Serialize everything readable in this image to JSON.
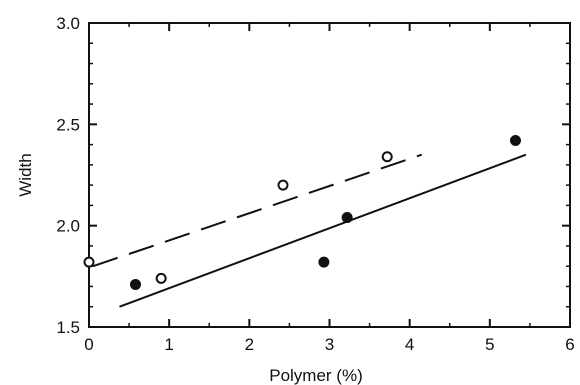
{
  "chart_data": {
    "type": "scatter",
    "xlabel": "Polymer (%)",
    "ylabel": "Width",
    "xlim": [
      0,
      6
    ],
    "ylim": [
      1.5,
      3.0
    ],
    "grid": false,
    "x_ticks": [
      "0",
      "1",
      "2",
      "3",
      "4",
      "5",
      "6"
    ],
    "y_ticks": [
      "1.5",
      "2.0",
      "2.5",
      "3.0"
    ],
    "series": [
      {
        "marker": "open-circle",
        "points": [
          {
            "x": 0.0,
            "y": 1.82
          },
          {
            "x": 0.9,
            "y": 1.74
          },
          {
            "x": 2.42,
            "y": 2.2
          },
          {
            "x": 3.72,
            "y": 2.34
          }
        ],
        "fit_line": {
          "style": "dashed",
          "x": [
            0.05,
            4.15
          ],
          "y": [
            1.8,
            2.35
          ]
        }
      },
      {
        "marker": "filled-circle",
        "points": [
          {
            "x": 0.58,
            "y": 1.71
          },
          {
            "x": 2.93,
            "y": 1.82
          },
          {
            "x": 3.22,
            "y": 2.04
          },
          {
            "x": 5.32,
            "y": 2.42
          }
        ],
        "fit_line": {
          "style": "solid",
          "x": [
            0.38,
            5.45
          ],
          "y": [
            1.6,
            2.35
          ]
        }
      }
    ]
  }
}
